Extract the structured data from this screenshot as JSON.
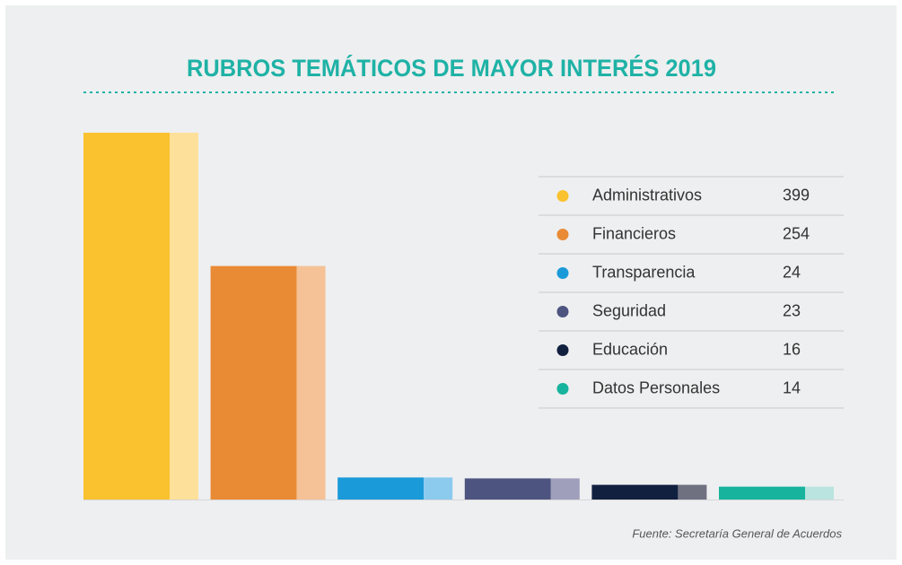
{
  "chart_data": {
    "type": "bar",
    "title": "RUBROS TEMÁTICOS DE MAYOR INTERÉS 2019",
    "categories": [
      "Administrativos",
      "Financieros",
      "Transparencia",
      "Seguridad",
      "Educación",
      "Datos Personales"
    ],
    "values": [
      399,
      254,
      24,
      23,
      16,
      14
    ],
    "colors": [
      "#f9c22e",
      "#e98a35",
      "#1a9ad9",
      "#4d5480",
      "#11203f",
      "#17b39d"
    ],
    "shade_colors": [
      "#fde09a",
      "#f5c297",
      "#8ccbee",
      "#a09fbb",
      "#6f7080",
      "#b9e4df"
    ],
    "source": "Fuente: Secretaría General de Acuerdos"
  }
}
